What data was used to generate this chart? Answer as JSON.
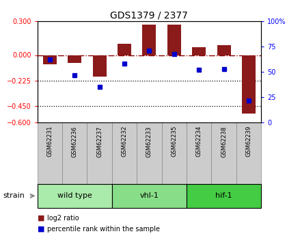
{
  "title": "GDS1379 / 2377",
  "samples": [
    "GSM62231",
    "GSM62236",
    "GSM62237",
    "GSM62232",
    "GSM62233",
    "GSM62235",
    "GSM62234",
    "GSM62238",
    "GSM62239"
  ],
  "log2_ratio": [
    -0.08,
    -0.07,
    -0.19,
    0.1,
    0.27,
    0.27,
    0.07,
    0.09,
    -0.52
  ],
  "percentile_rank": [
    62,
    47,
    35,
    58,
    71,
    68,
    52,
    53,
    22
  ],
  "ylim_left": [
    -0.6,
    0.3
  ],
  "ylim_right": [
    0,
    100
  ],
  "yticks_left": [
    0.3,
    0,
    -0.225,
    -0.45,
    -0.6
  ],
  "yticks_right": [
    100,
    75,
    50,
    25,
    0
  ],
  "hlines_dotted": [
    -0.225,
    -0.45
  ],
  "hline_dashdot": 0.0,
  "groups": [
    {
      "label": "wild type",
      "indices": [
        0,
        1,
        2
      ],
      "color": "#aaeaaa"
    },
    {
      "label": "vhl-1",
      "indices": [
        3,
        4,
        5
      ],
      "color": "#88dd88"
    },
    {
      "label": "hif-1",
      "indices": [
        6,
        7,
        8
      ],
      "color": "#44cc44"
    }
  ],
  "bar_color": "#8b1a1a",
  "point_color": "#0000cc",
  "bar_width": 0.55,
  "group_label": "strain",
  "legend_bar": "log2 ratio",
  "legend_point": "percentile rank within the sample",
  "sample_bg": "#cccccc"
}
